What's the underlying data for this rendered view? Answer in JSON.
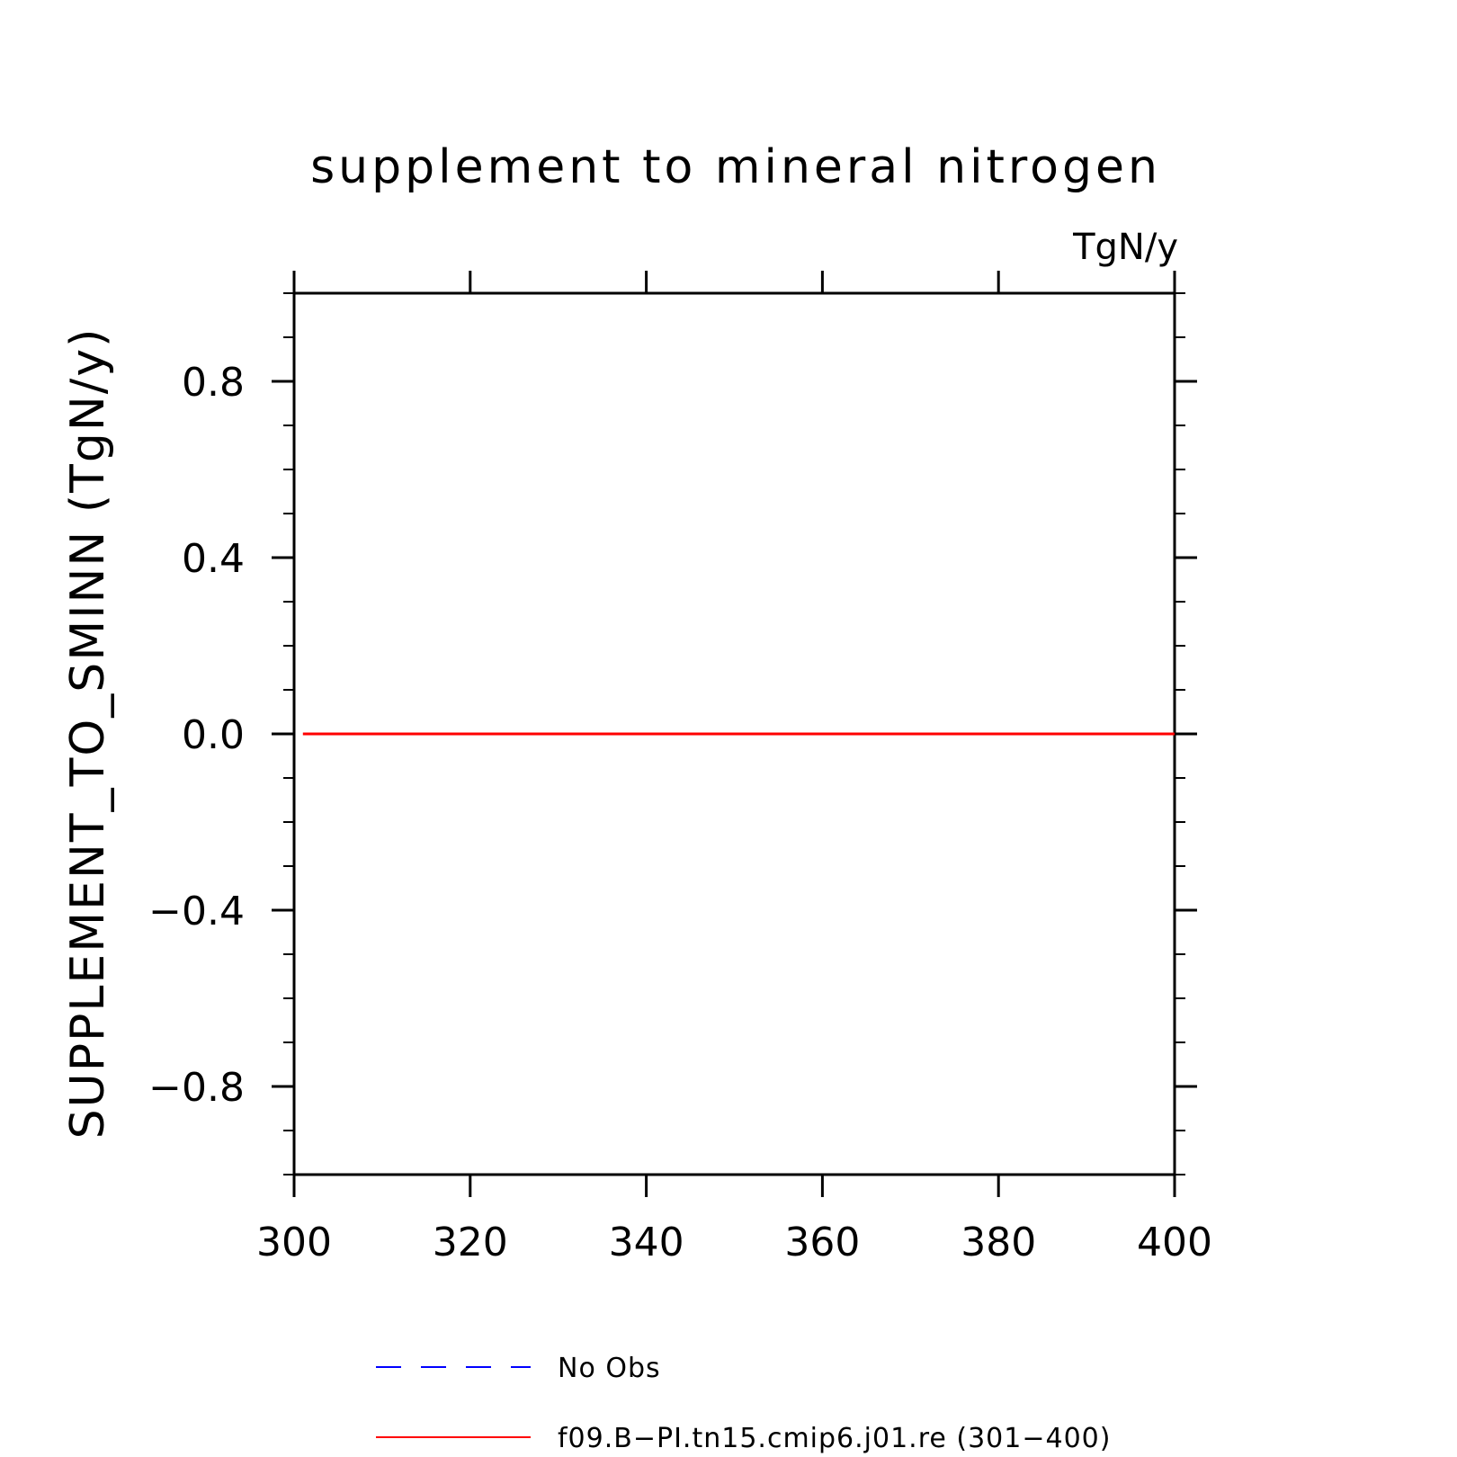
{
  "chart_data": {
    "type": "line",
    "title": "supplement to mineral nitrogen",
    "units_label": "TgN/y",
    "ylabel": "SUPPLEMENT_TO_SMINN   (TgN/y)",
    "xlabel": "",
    "xlim": [
      300,
      400
    ],
    "ylim": [
      -1.0,
      1.0
    ],
    "x_ticks": [
      300,
      320,
      340,
      360,
      380,
      400
    ],
    "x_tick_labels": [
      "300",
      "320",
      "340",
      "360",
      "380",
      "400"
    ],
    "x_minor_ticks": [],
    "y_ticks": [
      -0.8,
      -0.4,
      0.0,
      0.4,
      0.8
    ],
    "y_tick_labels": [
      "−0.8",
      "−0.4",
      "0.0",
      "0.4",
      "0.8"
    ],
    "y_minor_step": 0.1,
    "grid": false,
    "series": [
      {
        "name": "No Obs",
        "color": "#0000ff",
        "dash": "dashed",
        "x": [],
        "y": []
      },
      {
        "name": "f09.B−PI.tn15.cmip6.j01.re (301−400)",
        "color": "#ff0000",
        "dash": "solid",
        "x": [
          301,
          400
        ],
        "y": [
          0.0,
          0.0
        ]
      }
    ],
    "legend_position": "bottom"
  }
}
